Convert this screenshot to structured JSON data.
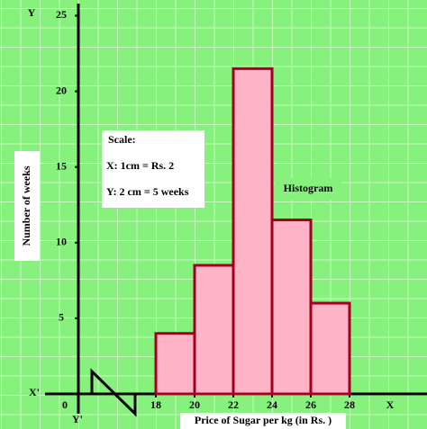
{
  "chart_data": {
    "type": "histogram",
    "x_label": "Price of Sugar  per kg (in Rs. )",
    "y_label": "Number of weeks",
    "bins": [
      18,
      20,
      22,
      24,
      26,
      28
    ],
    "values": [
      4,
      8.5,
      21.5,
      11.5,
      6
    ],
    "color": "#ffb3c6",
    "edge_color": "#a3001f",
    "xlim": [
      14,
      32
    ],
    "ylim": [
      0,
      26
    ],
    "xticks": [
      18,
      20,
      22,
      24,
      26,
      28
    ],
    "yticks": [
      5,
      10,
      15,
      20,
      25
    ],
    "origin_label": "0",
    "axis_names": {
      "x_pos": "X",
      "x_neg": "X'",
      "y_pos": "Y",
      "y_neg": "Y'"
    },
    "scale_box": {
      "title": "Scale:",
      "x": "X: 1cm = Rs. 2",
      "y": "Y: 2 cm = 5 weeks"
    },
    "annotation": "Histogram"
  }
}
